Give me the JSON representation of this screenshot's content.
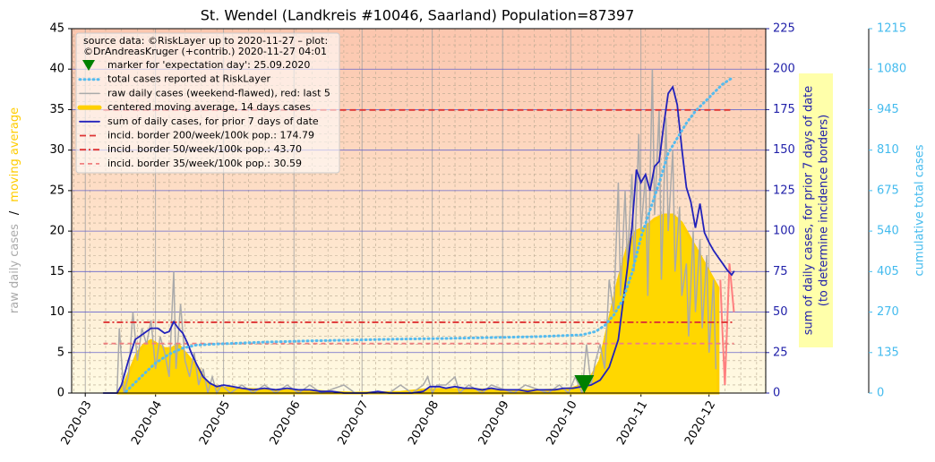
{
  "chart_data": {
    "type": "line",
    "title": "St. Wendel (Landkreis #10046, Saarland) Population=87397",
    "legend_header": [
      "source data: ©RiskLayer up to 2020-11-27 – plot:",
      "©DrAndreasKruger (+contrib.) 2020-11-27 04:01"
    ],
    "ylabel_parts": [
      {
        "text": "raw daily cases",
        "color": "#aaaaaa"
      },
      {
        "text": "/",
        "color": "#000000"
      },
      {
        "text": "moving average",
        "color": "#ffcc00"
      }
    ],
    "y2label": [
      "sum of daily cases, for prior 7 days of date",
      "(to determine incidence borders)"
    ],
    "y2label_color": "#2222aa",
    "y2label_box": "#ffffaa",
    "y3label": "cumulative total cases",
    "y3label_color": "#44bbee",
    "xlim": [
      55,
      361
    ],
    "xticks": [
      {
        "value": 61,
        "label": "2020-03"
      },
      {
        "value": 92,
        "label": "2020-04"
      },
      {
        "value": 122,
        "label": "2020-05"
      },
      {
        "value": 153,
        "label": "2020-06"
      },
      {
        "value": 183,
        "label": "2020-07"
      },
      {
        "value": 214,
        "label": "2020-08"
      },
      {
        "value": 245,
        "label": "2020-09"
      },
      {
        "value": 275,
        "label": "2020-10"
      },
      {
        "value": 306,
        "label": "2020-11"
      },
      {
        "value": 336,
        "label": "2020-12"
      }
    ],
    "ylim": [
      0,
      45
    ],
    "yticks": [
      0,
      5,
      10,
      15,
      20,
      25,
      30,
      35,
      40,
      45
    ],
    "y2lim": [
      0,
      225
    ],
    "y2ticks": [
      0,
      25,
      50,
      75,
      100,
      125,
      150,
      175,
      200,
      225
    ],
    "y2tick_color": "#2222aa",
    "y3lim": [
      0,
      1215
    ],
    "y3ticks": [
      0,
      135,
      270,
      405,
      540,
      675,
      810,
      945,
      1080,
      1215
    ],
    "y3tick_color": "#44bbee",
    "grid": true,
    "background": [
      "#fcc6ae",
      "#fffbe3"
    ],
    "marker": {
      "name": "marker for 'expectation day': 25.09.2020",
      "x": 281,
      "value": 0,
      "color": "#008000"
    },
    "series": [
      {
        "name": "total cases reported at RiskLayer",
        "color": "#55bbee",
        "style": "dotted",
        "width": 3,
        "axis": "y3",
        "x": [
          79,
          81,
          86,
          92,
          98,
          104,
          110,
          120,
          140,
          160,
          180,
          200,
          220,
          240,
          260,
          280,
          286,
          290,
          294,
          298,
          302,
          306,
          310,
          314,
          318,
          322,
          326,
          330,
          334,
          338,
          342,
          346
        ],
        "values": [
          5,
          20,
          57,
          100,
          130,
          150,
          160,
          164,
          170,
          174,
          177,
          180,
          182,
          185,
          188,
          194,
          205,
          225,
          260,
          310,
          400,
          520,
          610,
          700,
          800,
          850,
          900,
          940,
          970,
          1000,
          1030,
          1050
        ]
      },
      {
        "name": "raw daily cases (weekend-flawed), red: last 5",
        "color": "#aaaaaa",
        "style": "solid",
        "width": 1.5,
        "axis": "y",
        "highlight_last": 5,
        "highlight_color": "#ff7f7f",
        "x": [
          69,
          75,
          76,
          78,
          80,
          82,
          84,
          86,
          88,
          90,
          92,
          94,
          96,
          98,
          100,
          101,
          103,
          105,
          107,
          109,
          111,
          113,
          115,
          117,
          119,
          121,
          125,
          130,
          135,
          140,
          145,
          150,
          155,
          160,
          165,
          175,
          180,
          195,
          200,
          205,
          210,
          212,
          214,
          216,
          220,
          224,
          226,
          230,
          236,
          240,
          250,
          255,
          265,
          270,
          274,
          277,
          280,
          282,
          284,
          286,
          288,
          290,
          292,
          294,
          296,
          297,
          299,
          300,
          302,
          303,
          305,
          306,
          308,
          309,
          311,
          312,
          314,
          315,
          317,
          318,
          320,
          321,
          323,
          324,
          326,
          327,
          329,
          330,
          332,
          333,
          335,
          336,
          338,
          339,
          341,
          342,
          343,
          345,
          347
        ],
        "values": [
          0,
          0,
          8,
          0,
          2,
          10,
          4,
          8,
          6,
          9,
          3,
          7,
          5,
          2,
          15,
          3,
          11,
          4,
          2,
          5,
          1,
          3,
          0,
          2,
          0,
          1,
          0,
          1,
          0,
          1,
          0,
          1,
          0,
          1,
          0,
          1,
          0,
          0,
          1,
          0,
          1,
          2,
          0,
          1,
          1,
          2,
          0,
          1,
          0,
          1,
          0,
          1,
          0,
          1,
          0,
          2,
          0,
          6,
          1,
          4,
          6,
          3,
          14,
          10,
          26,
          12,
          25,
          16,
          27,
          15,
          32,
          20,
          27,
          12,
          40,
          22,
          35,
          14,
          34,
          20,
          30,
          15,
          23,
          12,
          16,
          7,
          20,
          10,
          19,
          8,
          17,
          5,
          14,
          3,
          14,
          7,
          1,
          16,
          10
        ]
      },
      {
        "name": "centered moving average, 14 days cases",
        "color": "#ffd000",
        "fill": "#ffd700",
        "style": "solid",
        "width": 3,
        "axis": "y",
        "x": [
          75,
          78,
          81,
          84,
          87,
          90,
          93,
          96,
          99,
          102,
          105,
          108,
          111,
          114,
          117,
          120,
          130,
          140,
          150,
          160,
          170,
          180,
          200,
          210,
          220,
          230,
          240,
          250,
          260,
          270,
          276,
          280,
          284,
          288,
          292,
          296,
          300,
          304,
          308,
          312,
          316,
          320,
          324,
          328,
          332,
          336,
          340
        ],
        "values": [
          0,
          1,
          3,
          5,
          6,
          6.5,
          6,
          5.5,
          5.5,
          6,
          5,
          4,
          3,
          1.5,
          1,
          0.7,
          0.5,
          0.4,
          0.3,
          0.3,
          0.1,
          0,
          0.1,
          0.4,
          0.5,
          0.4,
          0.4,
          0.3,
          0.3,
          0.4,
          0.6,
          1,
          2,
          4,
          9,
          14,
          18,
          20,
          20.5,
          21.5,
          22,
          22,
          21,
          19,
          17,
          15,
          13
        ]
      },
      {
        "name": "sum of daily cases, for prior 7 days of date",
        "color": "#2222bb",
        "style": "solid",
        "width": 1.8,
        "axis": "y2",
        "x": [
          69,
          75,
          77,
          80,
          83,
          87,
          90,
          93,
          96,
          98,
          100,
          102,
          104,
          106,
          108,
          110,
          113,
          116,
          119,
          122,
          126,
          130,
          135,
          140,
          145,
          150,
          155,
          160,
          165,
          170,
          175,
          180,
          185,
          190,
          195,
          200,
          205,
          210,
          213,
          217,
          220,
          224,
          228,
          232,
          236,
          240,
          244,
          248,
          252,
          256,
          260,
          264,
          268,
          272,
          276,
          280,
          284,
          288,
          292,
          296,
          298,
          300,
          302,
          304,
          306,
          308,
          310,
          312,
          314,
          316,
          318,
          320,
          322,
          324,
          326,
          328,
          330,
          332,
          334,
          336,
          338,
          340,
          342,
          344,
          346,
          347
        ],
        "values": [
          0,
          0,
          5,
          20,
          33,
          37,
          40,
          40,
          37,
          38,
          44,
          40,
          37,
          31,
          24,
          18,
          10,
          6,
          4,
          5,
          4,
          3,
          2,
          3,
          2,
          3,
          2,
          2,
          1,
          1,
          0,
          0,
          0,
          1,
          0,
          0,
          0,
          1,
          4,
          4,
          3,
          4,
          3,
          3,
          2,
          3,
          2,
          2,
          2,
          1,
          2,
          2,
          2,
          3,
          3,
          4,
          5,
          8,
          16,
          33,
          55,
          77,
          102,
          138,
          130,
          135,
          125,
          140,
          143,
          165,
          185,
          189,
          178,
          151,
          127,
          118,
          102,
          117,
          99,
          93,
          88,
          84,
          80,
          76,
          73,
          75
        ]
      }
    ],
    "borders_x": [
      69,
      347
    ],
    "borders": [
      {
        "name": "incid. border 200/week/100k pop.: 174.79",
        "value": 174.79,
        "color": "#dd3333",
        "dash": "7 4"
      },
      {
        "name": "incid. border 50/week/100k pop.: 43.70",
        "value": 43.7,
        "color": "#dd3333",
        "dash": "7 3 2 3"
      },
      {
        "name": "incid. border 35/week/100k pop.: 30.59",
        "value": 30.59,
        "color": "#f08080",
        "dash": "5 4"
      }
    ]
  }
}
